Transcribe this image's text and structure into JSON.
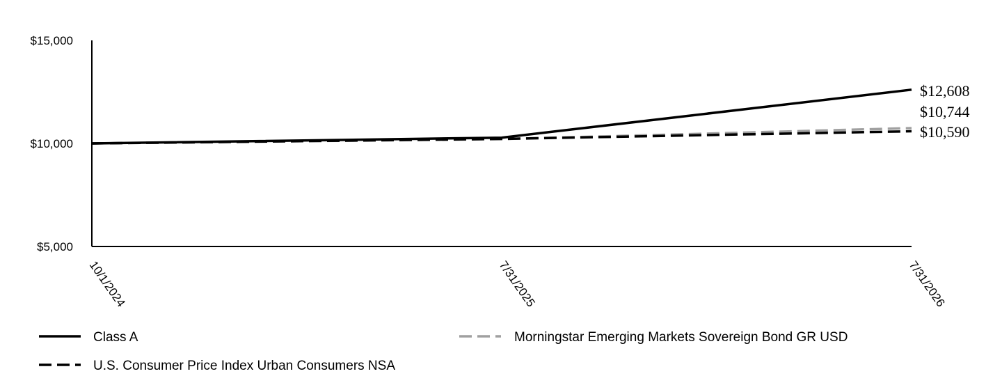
{
  "chart_data": {
    "type": "line",
    "x": [
      "10/1/2024",
      "7/31/2025",
      "7/31/2026"
    ],
    "ylim": [
      5000,
      15000
    ],
    "yticks": [
      {
        "value": 5000,
        "label": "$5,000"
      },
      {
        "value": 10000,
        "label": "$10,000"
      },
      {
        "value": 15000,
        "label": "$15,000"
      }
    ],
    "series": [
      {
        "name": "Class A",
        "values": [
          10000,
          10280,
          12608
        ],
        "end_label": "$12,608",
        "color": "#000000",
        "dash": "solid"
      },
      {
        "name": "Morningstar Emerging Markets Sovereign Bond GR USD",
        "values": [
          10000,
          10210,
          10744
        ],
        "end_label": "$10,744",
        "color": "#a0a0a0",
        "dash": "dashed"
      },
      {
        "name": "U.S. Consumer Price Index Urban Consumers NSA",
        "values": [
          10000,
          10220,
          10590
        ],
        "end_label": "$10,590",
        "color": "#000000",
        "dash": "dashed"
      }
    ],
    "legend_position": "bottom",
    "grid": false
  }
}
